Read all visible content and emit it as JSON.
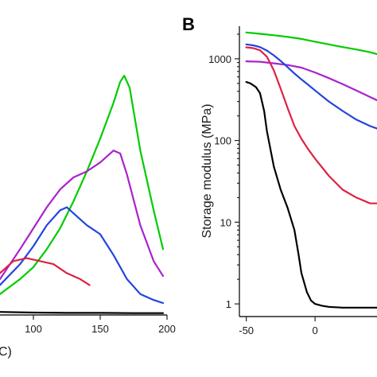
{
  "chart_data": [
    {
      "panel": "",
      "type": "line",
      "xlabel": "C)",
      "ylabel": "",
      "xlim": [
        75,
        200
      ],
      "ylim": [
        0,
        1
      ],
      "xticks": [
        100,
        150,
        200
      ],
      "series": [
        {
          "color": "#00cc00",
          "x": [
            75,
            90,
            100,
            110,
            120,
            130,
            140,
            150,
            160,
            165,
            168,
            172,
            180,
            190,
            197
          ],
          "y": [
            0.07,
            0.12,
            0.16,
            0.22,
            0.29,
            0.38,
            0.48,
            0.59,
            0.71,
            0.78,
            0.8,
            0.76,
            0.55,
            0.35,
            0.22
          ]
        },
        {
          "color": "#aa22cc",
          "x": [
            75,
            90,
            100,
            110,
            120,
            130,
            140,
            150,
            160,
            165,
            170,
            180,
            190,
            197
          ],
          "y": [
            0.12,
            0.22,
            0.29,
            0.36,
            0.42,
            0.46,
            0.48,
            0.51,
            0.55,
            0.54,
            0.47,
            0.3,
            0.18,
            0.13
          ]
        },
        {
          "color": "#2244dd",
          "x": [
            75,
            90,
            100,
            110,
            120,
            125,
            130,
            140,
            150,
            160,
            170,
            180,
            190,
            197
          ],
          "y": [
            0.1,
            0.17,
            0.23,
            0.3,
            0.35,
            0.36,
            0.34,
            0.3,
            0.27,
            0.2,
            0.12,
            0.07,
            0.05,
            0.04
          ]
        },
        {
          "color": "#dd2244",
          "x": [
            75,
            85,
            95,
            105,
            115,
            125,
            135,
            142
          ],
          "y": [
            0.14,
            0.18,
            0.19,
            0.18,
            0.17,
            0.14,
            0.12,
            0.1
          ]
        },
        {
          "color": "#000000",
          "x": [
            75,
            100,
            125,
            150,
            175,
            197
          ],
          "y": [
            0.01,
            0.008,
            0.007,
            0.007,
            0.006,
            0.006
          ]
        }
      ]
    },
    {
      "panel": "B",
      "type": "line",
      "xlabel": "",
      "ylabel": "Storage modulus (MPa)",
      "yscale": "log",
      "xlim": [
        -55,
        45
      ],
      "ylim": [
        0.7,
        2500
      ],
      "xticks": [
        -50,
        0
      ],
      "yticks": [
        1,
        10,
        100,
        1000
      ],
      "ytick_labels": [
        "1",
        "10",
        "100",
        "1000"
      ],
      "series": [
        {
          "color": "#00cc00",
          "x": [
            -50,
            -40,
            -30,
            -20,
            -10,
            0,
            10,
            20,
            30,
            40,
            45
          ],
          "y": [
            2100,
            2020,
            1940,
            1850,
            1750,
            1620,
            1500,
            1390,
            1300,
            1200,
            1140
          ]
        },
        {
          "color": "#aa22cc",
          "x": [
            -50,
            -40,
            -30,
            -20,
            -10,
            0,
            10,
            20,
            30,
            40,
            45
          ],
          "y": [
            930,
            920,
            880,
            840,
            780,
            680,
            580,
            490,
            410,
            340,
            310
          ]
        },
        {
          "color": "#2244dd",
          "x": [
            -50,
            -45,
            -40,
            -35,
            -30,
            -25,
            -20,
            -15,
            -10,
            -5,
            0,
            10,
            20,
            30,
            40,
            45
          ],
          "y": [
            1500,
            1460,
            1390,
            1260,
            1100,
            940,
            790,
            660,
            560,
            480,
            410,
            300,
            230,
            180,
            150,
            140
          ]
        },
        {
          "color": "#dd2244",
          "x": [
            -50,
            -45,
            -40,
            -35,
            -30,
            -25,
            -20,
            -15,
            -10,
            -5,
            0,
            10,
            20,
            30,
            40,
            45
          ],
          "y": [
            1380,
            1350,
            1270,
            1060,
            720,
            430,
            250,
            150,
            105,
            78,
            60,
            37,
            25,
            20,
            17,
            17
          ]
        },
        {
          "color": "#000000",
          "x": [
            -50,
            -47,
            -43,
            -40,
            -37,
            -35,
            -30,
            -25,
            -20,
            -15,
            -12,
            -10,
            -6,
            -3,
            0,
            5,
            10,
            20,
            30,
            40,
            45
          ],
          "y": [
            520,
            500,
            450,
            380,
            230,
            130,
            48,
            25,
            15,
            8,
            4,
            2.4,
            1.4,
            1.1,
            1.0,
            0.95,
            0.92,
            0.9,
            0.9,
            0.9,
            0.9
          ]
        }
      ]
    }
  ]
}
